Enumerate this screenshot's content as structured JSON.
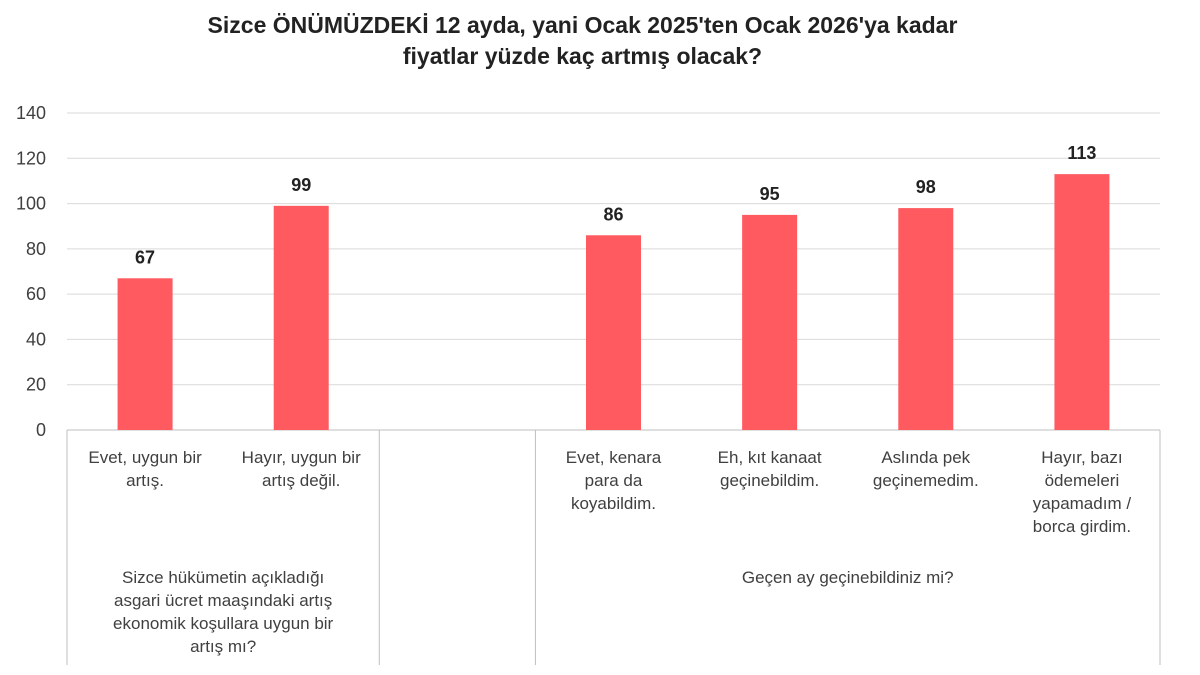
{
  "title": {
    "line1": "Sizce ÖNÜMÜZDEKİ 12 ayda, yani Ocak 2025'ten Ocak 2026'ya kadar",
    "line2": "fiyatlar yüzde kaç artmış olacak?"
  },
  "colors": {
    "bar": "#ff5a5f",
    "grid": "#d9d9d9",
    "axis": "#bfbfbf"
  },
  "chart_data": {
    "type": "bar",
    "ylim": [
      0,
      140
    ],
    "yticks": [
      "0",
      "20",
      "40",
      "60",
      "80",
      "100",
      "120",
      "140"
    ],
    "grid": true,
    "categories": [
      "Evet, uygun bir\nartış.",
      "Hayır, uygun bir\nartış değil.",
      "",
      "Evet, kenara\npara da\nkoyabildim.",
      "Eh, kıt kanaat\ngeçinebildim.",
      "Aslında pek\ngeçinemedim.",
      "Hayır, bazı\nödemeleri\nyapamadım /\nborca girdim."
    ],
    "values": [
      67,
      99,
      null,
      86,
      95,
      98,
      113
    ],
    "data_labels": [
      "67",
      "99",
      "",
      "86",
      "95",
      "98",
      "113"
    ],
    "groups": [
      "Sizce hükümetin açıkladığı\nasgari ücret maaşındaki artış\nekonomik koşullara uygun bir\nartış mı?",
      "Geçen ay geçinebildiniz mi?"
    ]
  }
}
